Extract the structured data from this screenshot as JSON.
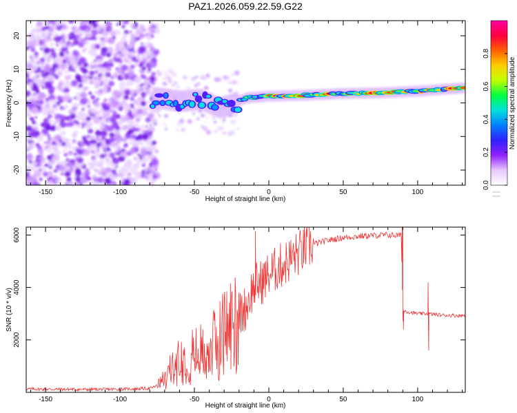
{
  "title": "PAZ1.2026.059.22.59.G22",
  "chart_data": [
    {
      "type": "heatmap",
      "title": "PAZ1.2026.059.22.59.G22",
      "xlabel": "Height of straight line (km)",
      "ylabel": "Frequency (Hz)",
      "xlim": [
        -163,
        132
      ],
      "ylim": [
        -24.5,
        24.5
      ],
      "x_ticks": [
        -150,
        -100,
        -50,
        0,
        50,
        100
      ],
      "x_tick_labels": [
        "-150",
        "-100",
        "-50",
        "0",
        "50",
        "100"
      ],
      "y_ticks": [
        -20,
        -10,
        0,
        10,
        20
      ],
      "y_tick_labels": [
        "-20",
        "-10",
        "0",
        "10",
        "20"
      ],
      "trend": {
        "x": [
          -75,
          -60,
          -45,
          -33,
          -25,
          -15,
          0,
          25,
          50,
          75,
          100,
          132
        ],
        "y": [
          1.5,
          0.5,
          1.0,
          -1.5,
          -0.5,
          1.5,
          2.0,
          2.3,
          2.8,
          3.0,
          3.5,
          4.5
        ]
      },
      "noise_region_x": [
        -163,
        -77
      ],
      "colorbar": {
        "label": "Normalized spectral amplitude",
        "range": [
          0.0,
          1.0
        ],
        "ticks": [
          0.0,
          0.2,
          0.4,
          0.6,
          0.8
        ],
        "tick_labels": [
          "0.0",
          "0.2",
          "0.4",
          "0.6",
          "0.8"
        ],
        "colors": [
          "#ffffff",
          "#e8c8ff",
          "#9020ff",
          "#3020ff",
          "#0080ff",
          "#00e0e0",
          "#00ff40",
          "#c0ff00",
          "#ffd000",
          "#ff6000",
          "#ff0040",
          "#ff00a0"
        ]
      }
    },
    {
      "type": "line",
      "xlabel": "Height of straight line (km)",
      "ylabel": "SNR (10 * v/v)",
      "xlim": [
        -163,
        132
      ],
      "ylim": [
        0,
        6300
      ],
      "x_ticks": [
        -150,
        -100,
        -50,
        0,
        50,
        100
      ],
      "x_tick_labels": [
        "-150",
        "-100",
        "-50",
        "0",
        "50",
        "100"
      ],
      "y_ticks": [
        2000,
        4000,
        6000
      ],
      "y_tick_labels": [
        "2000",
        "4000",
        "6000"
      ],
      "color": "#ee3333",
      "series": [
        {
          "name": "SNR",
          "x": [
            -163,
            -150,
            -125,
            -100,
            -80,
            -75,
            -70,
            -65,
            -60,
            -55,
            -50,
            -45,
            -40,
            -35,
            -30,
            -25,
            -20,
            -15,
            -12,
            -9,
            -5,
            0,
            5,
            10,
            15,
            20,
            25,
            30,
            40,
            50,
            60,
            70,
            80,
            89,
            90,
            92,
            95,
            100,
            105,
            107,
            110,
            115,
            120,
            125,
            132
          ],
          "y": [
            130,
            120,
            110,
            120,
            150,
            250,
            500,
            900,
            1200,
            1300,
            1400,
            1500,
            1600,
            1900,
            2300,
            2600,
            2900,
            3300,
            3800,
            4100,
            4200,
            4500,
            4700,
            4900,
            5100,
            5300,
            5500,
            5650,
            5800,
            5900,
            5950,
            5980,
            6000,
            5980,
            3100,
            3100,
            3050,
            3000,
            3000,
            3000,
            2980,
            2950,
            2940,
            2930,
            2930
          ]
        }
      ],
      "annotations": {
        "spikes": [
          {
            "x": -9,
            "y": 6150
          },
          {
            "x": 90,
            "y": 6300
          },
          {
            "x": 107,
            "y": 4200
          }
        ]
      }
    }
  ]
}
